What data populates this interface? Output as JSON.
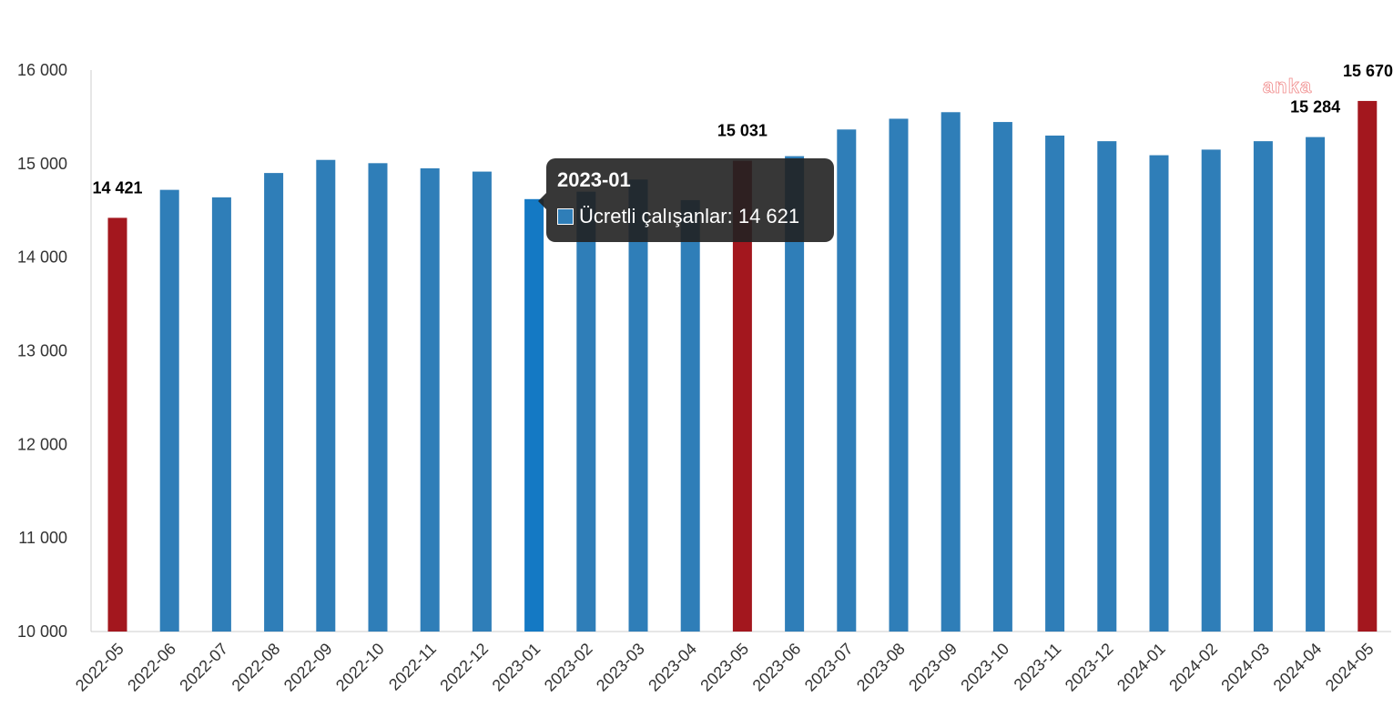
{
  "colors": {
    "bar": "#2f7eb8",
    "bar_highlight": "#a3171e",
    "bar_hover": "#1479c4",
    "axis": "#cccccc",
    "tooltip_bg": "#212121"
  },
  "chart_data": {
    "type": "bar",
    "title": "",
    "xlabel": "",
    "ylabel": "",
    "ylim": [
      10000,
      16000
    ],
    "yticks": [
      10000,
      11000,
      12000,
      13000,
      14000,
      15000,
      16000
    ],
    "ytick_labels": [
      "10 000",
      "11 000",
      "12 000",
      "13 000",
      "14 000",
      "15 000",
      "16 000"
    ],
    "grid": false,
    "categories": [
      "2022-05",
      "2022-06",
      "2022-07",
      "2022-08",
      "2022-09",
      "2022-10",
      "2022-11",
      "2022-12",
      "2023-01",
      "2023-02",
      "2023-03",
      "2023-04",
      "2023-05",
      "2023-06",
      "2023-07",
      "2023-08",
      "2023-09",
      "2023-10",
      "2023-11",
      "2023-12",
      "2024-01",
      "2024-02",
      "2024-03",
      "2024-04",
      "2024-05"
    ],
    "series": [
      {
        "name": "Ücretli çalışanlar",
        "values": [
          14421,
          14720,
          14640,
          14900,
          15040,
          15005,
          14950,
          14915,
          14621,
          14700,
          14830,
          14610,
          15031,
          15080,
          15365,
          15480,
          15550,
          15445,
          15300,
          15240,
          15090,
          15150,
          15240,
          15284,
          15670
        ]
      }
    ],
    "highlighted_categories": [
      "2022-05",
      "2023-05",
      "2024-05"
    ],
    "data_labels": [
      {
        "category": "2022-05",
        "text": "14 421"
      },
      {
        "category": "2023-05",
        "text": "15 031"
      },
      {
        "category": "2024-04",
        "text": "15 284"
      },
      {
        "category": "2024-05",
        "text": "15 670"
      }
    ]
  },
  "tooltip": {
    "title": "2023-01",
    "series_label": "Ücretli çalışanlar: 14 621",
    "category": "2023-01"
  },
  "watermark": "anka"
}
